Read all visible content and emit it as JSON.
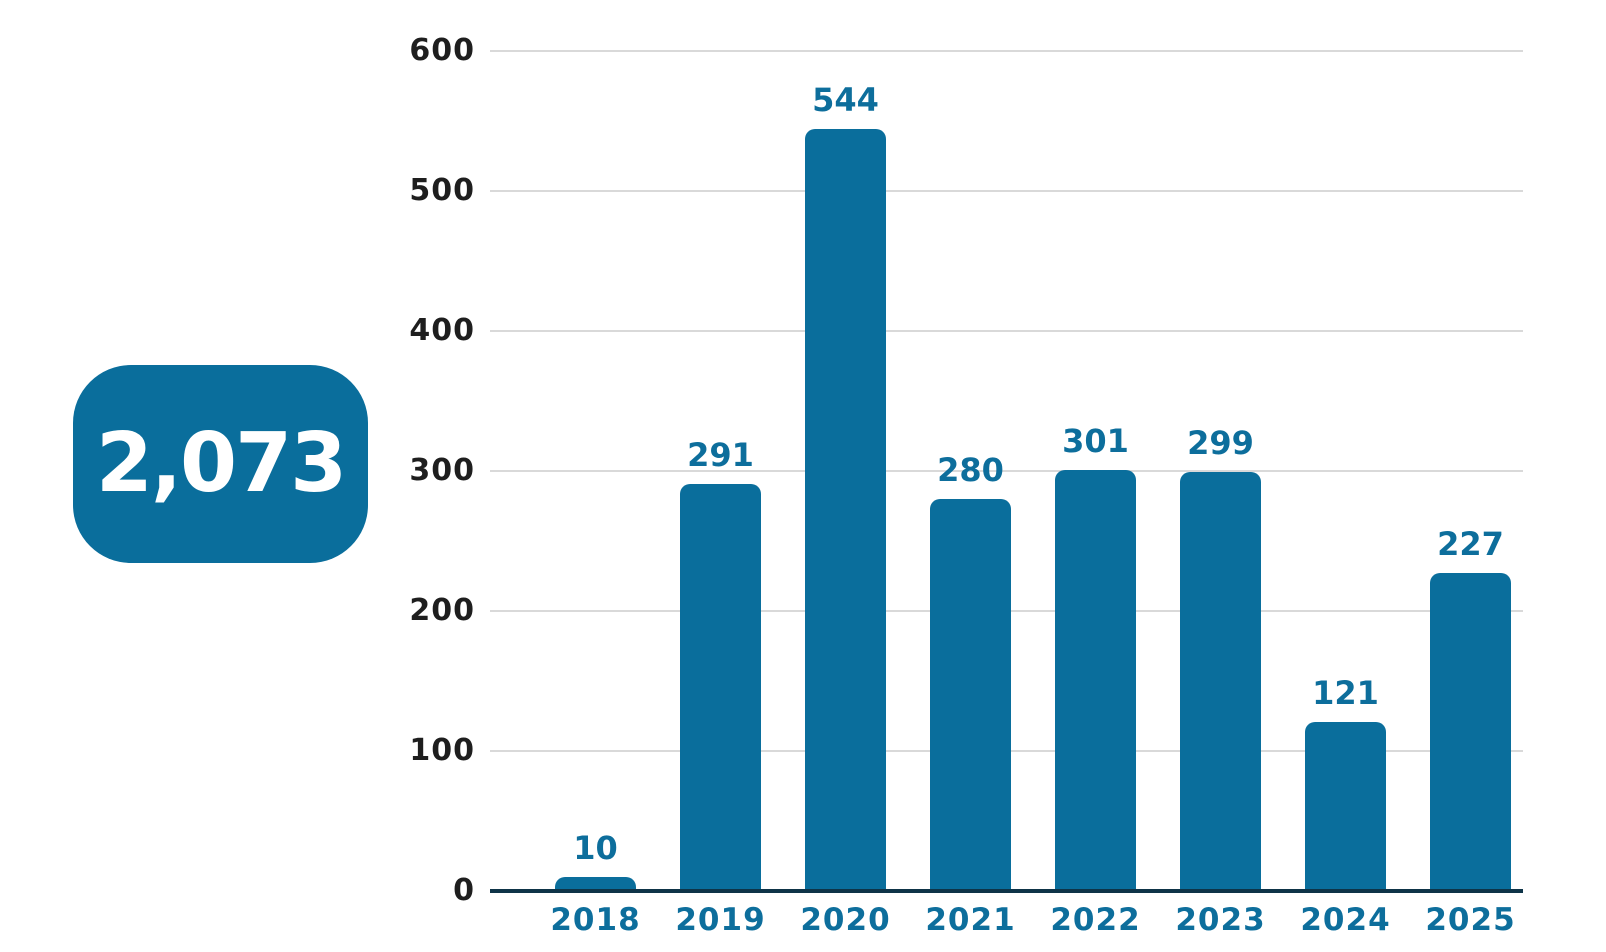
{
  "badge": {
    "value": "2,073"
  },
  "chart_data": {
    "type": "bar",
    "categories": [
      "2018",
      "2019",
      "2020",
      "2021",
      "2022",
      "2023",
      "2024",
      "2025"
    ],
    "values": [
      10,
      291,
      544,
      280,
      301,
      299,
      121,
      227
    ],
    "total_badge": "2,073",
    "title": "",
    "xlabel": "",
    "ylabel": "",
    "ylim": [
      0,
      600
    ],
    "yticks": [
      0,
      100,
      200,
      300,
      400,
      500,
      600
    ],
    "grid": true,
    "legend": false,
    "bar_labels_shown": true,
    "colors": {
      "bar": "#0A6E9C",
      "value_label": "#0D6E9C",
      "category_label": "#0D6E9C",
      "axis_line": "#0E3448",
      "gridline": "#D9D9D9",
      "ytick_label": "#1E1E1E",
      "badge_background": "#0A6E9C",
      "badge_text": "#FFFFFF",
      "background": "#FFFFFF"
    }
  }
}
